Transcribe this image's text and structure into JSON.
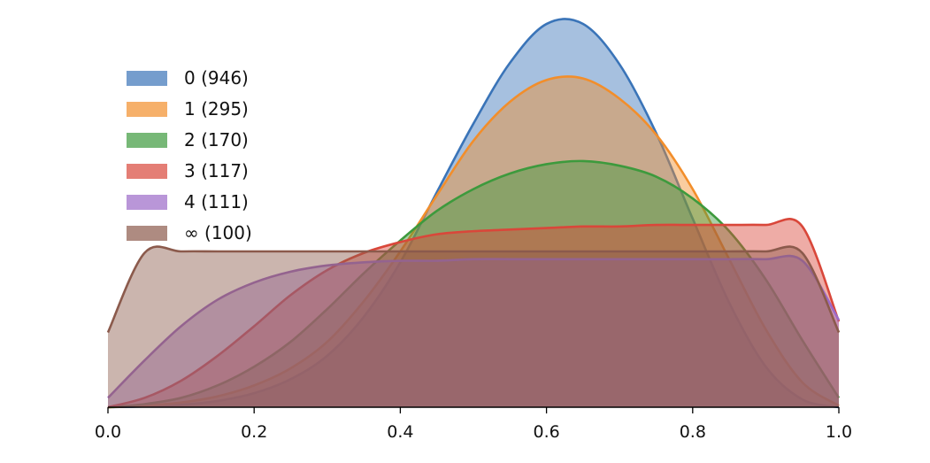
{
  "chart_data": {
    "type": "area",
    "title": "",
    "xlabel": "",
    "ylabel": "",
    "xlim": [
      0.0,
      1.0
    ],
    "ylim": [
      0,
      2.5
    ],
    "grid": false,
    "legend_position": "top-left",
    "x_ticks": [
      "0.0",
      "0.2",
      "0.4",
      "0.6",
      "0.8",
      "1.0"
    ],
    "x": [
      0.0,
      0.05,
      0.1,
      0.15,
      0.2,
      0.25,
      0.3,
      0.35,
      0.4,
      0.45,
      0.5,
      0.55,
      0.6,
      0.65,
      0.7,
      0.75,
      0.8,
      0.85,
      0.9,
      0.95,
      1.0
    ],
    "series": [
      {
        "name": "0 (946)",
        "color": "#3a74b8",
        "values": [
          0.0,
          0.005,
          0.015,
          0.04,
          0.09,
          0.18,
          0.33,
          0.58,
          0.93,
          1.38,
          1.82,
          2.21,
          2.46,
          2.46,
          2.2,
          1.76,
          1.21,
          0.67,
          0.26,
          0.05,
          0.0
        ]
      },
      {
        "name": "1 (295)",
        "color": "#f28e2b",
        "values": [
          0.0,
          0.01,
          0.03,
          0.07,
          0.14,
          0.25,
          0.42,
          0.68,
          1.0,
          1.36,
          1.71,
          1.96,
          2.1,
          2.11,
          1.98,
          1.75,
          1.4,
          0.95,
          0.5,
          0.16,
          0.01
        ]
      },
      {
        "name": "2 (170)",
        "color": "#3d9a3d",
        "values": [
          0.0,
          0.02,
          0.06,
          0.14,
          0.26,
          0.42,
          0.63,
          0.86,
          1.07,
          1.26,
          1.4,
          1.5,
          1.56,
          1.58,
          1.55,
          1.48,
          1.34,
          1.13,
          0.82,
          0.43,
          0.06
        ]
      },
      {
        "name": "3 (117)",
        "color": "#d9473a",
        "values": [
          0.0,
          0.06,
          0.17,
          0.33,
          0.52,
          0.72,
          0.88,
          0.99,
          1.06,
          1.11,
          1.13,
          1.14,
          1.15,
          1.16,
          1.16,
          1.17,
          1.17,
          1.17,
          1.17,
          1.16,
          0.55
        ]
      },
      {
        "name": "4 (111)",
        "color": "#9b6ac7",
        "values": [
          0.06,
          0.3,
          0.52,
          0.69,
          0.8,
          0.87,
          0.91,
          0.93,
          0.94,
          0.94,
          0.95,
          0.95,
          0.95,
          0.95,
          0.95,
          0.95,
          0.95,
          0.95,
          0.95,
          0.94,
          0.56
        ]
      },
      {
        "name": "∞ (100)",
        "color": "#8b5a4c",
        "values": [
          0.48,
          0.99,
          1.0,
          1.0,
          1.0,
          1.0,
          1.0,
          1.0,
          1.0,
          1.0,
          1.0,
          1.0,
          1.0,
          1.0,
          1.0,
          1.0,
          1.0,
          1.0,
          1.0,
          0.99,
          0.48
        ]
      }
    ]
  }
}
